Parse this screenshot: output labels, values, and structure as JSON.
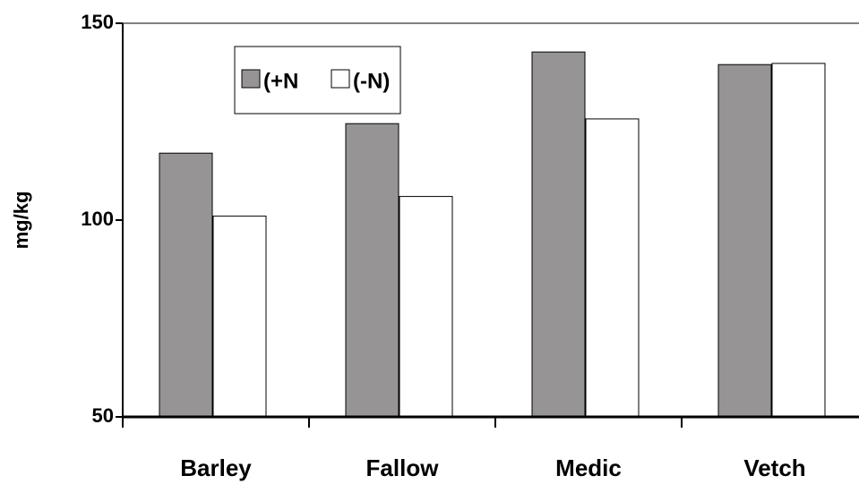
{
  "chart_data": {
    "type": "bar",
    "y_label": "mg/kg",
    "categories": [
      "Barley",
      "Fallow",
      "Medic",
      "Vetch"
    ],
    "series": [
      {
        "name": "(+N",
        "color": "#969494",
        "values": [
          117,
          124.5,
          142.7,
          139.5
        ]
      },
      {
        "name": "(-N)",
        "color": "#ffffff",
        "values": [
          101,
          106,
          125.7,
          139.8
        ]
      }
    ],
    "ylim": [
      50,
      150
    ],
    "yticks": [
      50,
      100,
      150
    ],
    "grid": false
  }
}
